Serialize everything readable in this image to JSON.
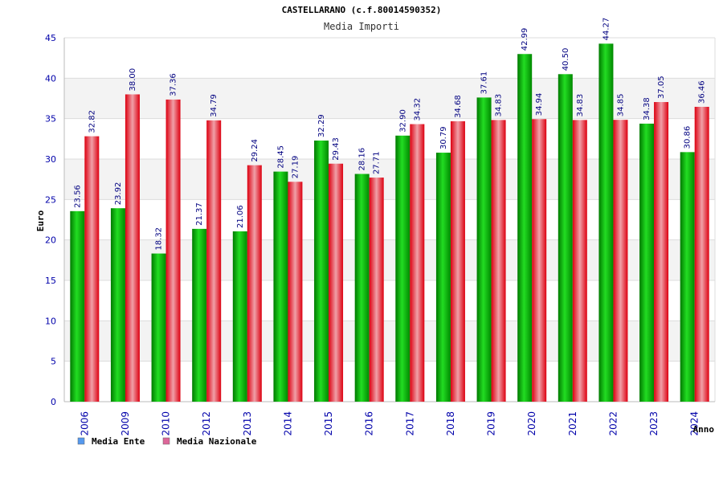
{
  "chart_data": {
    "type": "bar",
    "title": "CASTELLARANO (c.f.80014590352)",
    "subtitle": "Media Importi",
    "ylabel": "Euro",
    "xlabel": "Anno",
    "ylim": [
      0,
      45
    ],
    "yticks": [
      0,
      5,
      10,
      15,
      20,
      25,
      30,
      35,
      40,
      45
    ],
    "categories": [
      "2006",
      "2009",
      "2010",
      "2012",
      "2013",
      "2014",
      "2015",
      "2016",
      "2017",
      "2018",
      "2019",
      "2020",
      "2021",
      "2022",
      "2023",
      "2024"
    ],
    "series": [
      {
        "name": "Media Ente",
        "color": "#00b000",
        "legend_color": "#5599ee",
        "values": [
          23.56,
          23.92,
          18.32,
          21.37,
          21.06,
          28.45,
          32.29,
          28.16,
          32.9,
          30.79,
          37.61,
          42.99,
          40.5,
          44.27,
          34.38,
          30.86
        ],
        "labels": [
          "23.56",
          "23.92",
          "18.32",
          "21.37",
          "21.06",
          "28.45",
          "32.29",
          "28.16",
          "32.90",
          "30.79",
          "37.61",
          "42.99",
          "40.50",
          "44.27",
          "34.38",
          "30.86"
        ]
      },
      {
        "name": "Media Nazionale",
        "color": "#e01020",
        "legend_color": "#dd6699",
        "values": [
          32.82,
          38.0,
          37.36,
          34.79,
          29.24,
          27.19,
          29.43,
          27.71,
          34.32,
          34.68,
          34.83,
          34.94,
          34.83,
          34.85,
          37.05,
          36.46
        ],
        "labels": [
          "32.82",
          "38.00",
          "37.36",
          "34.79",
          "29.24",
          "27.19",
          "29.43",
          "27.71",
          "34.32",
          "34.68",
          "34.83",
          "34.94",
          "34.83",
          "34.85",
          "37.05",
          "36.46"
        ]
      }
    ],
    "grid": true,
    "legend_position": "bottom-left"
  }
}
